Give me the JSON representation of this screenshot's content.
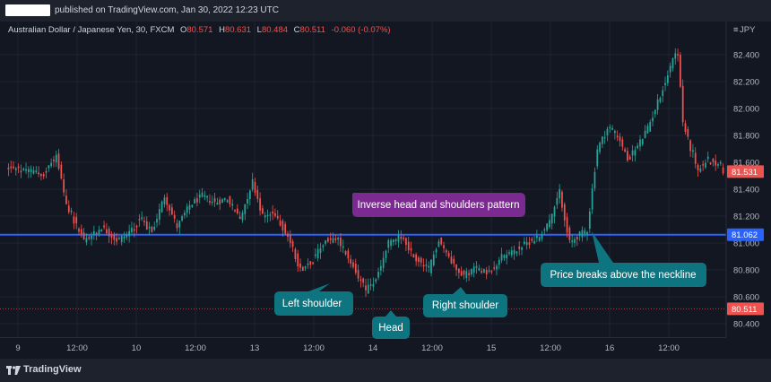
{
  "header": {
    "published_text": "published on TradingView.com, Jan 30, 2022 12:23 UTC"
  },
  "legend": {
    "symbol": "Australian Dollar / Japanese Yen, 30, FXCM",
    "open_label": "O",
    "open": "80.571",
    "high_label": "H",
    "high": "80.631",
    "low_label": "L",
    "low": "80.484",
    "close_label": "C",
    "close": "80.511",
    "change": "-0.060 (-0.07%)"
  },
  "currency": "JPY",
  "footer": {
    "brand": "TradingView"
  },
  "colors": {
    "up": "#26a69a",
    "down": "#ef5350",
    "neckline": "#2962ff",
    "price_badge": "#ef5350",
    "neckline_badge": "#2962ff",
    "callout_teal": "#0e7580",
    "callout_purple": "#7b2a91"
  },
  "chart_data": {
    "type": "candlestick",
    "y_axis": {
      "min": 80.3,
      "max": 82.6,
      "ticks": [
        "82.400",
        "82.200",
        "82.000",
        "81.800",
        "81.600",
        "81.400",
        "81.200",
        "81.000",
        "80.800",
        "80.600",
        "80.400"
      ]
    },
    "x_axis": {
      "ticks": [
        "9",
        "12:00",
        "10",
        "12:00",
        "13",
        "12:00",
        "14",
        "12:00",
        "15",
        "12:00",
        "16",
        "12:00"
      ]
    },
    "neckline": {
      "value": 81.062,
      "label": "81.062"
    },
    "last_price": {
      "value": 81.531,
      "label": "81.531"
    },
    "close_line": {
      "value": 80.511,
      "label": "80.511"
    },
    "anchors": [
      [
        0,
        81.56
      ],
      [
        14,
        81.52
      ],
      [
        19,
        81.65
      ],
      [
        23,
        81.28
      ],
      [
        30,
        81.02
      ],
      [
        37,
        81.12
      ],
      [
        43,
        81.02
      ],
      [
        47,
        81.06
      ],
      [
        52,
        81.18
      ],
      [
        57,
        81.08
      ],
      [
        62,
        81.35
      ],
      [
        67,
        81.12
      ],
      [
        72,
        81.28
      ],
      [
        77,
        81.35
      ],
      [
        82,
        81.3
      ],
      [
        87,
        81.33
      ],
      [
        92,
        81.18
      ],
      [
        97,
        81.46
      ],
      [
        101,
        81.2
      ],
      [
        106,
        81.22
      ],
      [
        111,
        81.05
      ],
      [
        116,
        80.8
      ],
      [
        121,
        80.88
      ],
      [
        126,
        81.02
      ],
      [
        131,
        81.02
      ],
      [
        136,
        80.86
      ],
      [
        142,
        80.65
      ],
      [
        146,
        80.72
      ],
      [
        151,
        81.0
      ],
      [
        156,
        81.05
      ],
      [
        161,
        80.9
      ],
      [
        167,
        80.8
      ],
      [
        171,
        81.03
      ],
      [
        176,
        80.86
      ],
      [
        181,
        80.76
      ],
      [
        186,
        80.82
      ],
      [
        191,
        80.78
      ],
      [
        196,
        80.9
      ],
      [
        201,
        80.94
      ],
      [
        206,
        81.0
      ],
      [
        211,
        81.05
      ],
      [
        216,
        81.2
      ],
      [
        219,
        81.38
      ],
      [
        223,
        81.0
      ],
      [
        226,
        81.05
      ],
      [
        230,
        81.1
      ],
      [
        234,
        81.7
      ],
      [
        238,
        81.85
      ],
      [
        242,
        81.8
      ],
      [
        246,
        81.62
      ],
      [
        250,
        81.72
      ],
      [
        254,
        81.85
      ],
      [
        258,
        82.05
      ],
      [
        262,
        82.25
      ],
      [
        264,
        82.38
      ],
      [
        266,
        82.42
      ],
      [
        268,
        81.9
      ],
      [
        271,
        81.7
      ],
      [
        274,
        81.55
      ],
      [
        278,
        81.62
      ],
      [
        281,
        81.6
      ],
      [
        284,
        81.54
      ]
    ],
    "annotations": [
      {
        "text": "Inverse head and shoulders pattern"
      },
      {
        "text": "Left shoulder"
      },
      {
        "text": "Head"
      },
      {
        "text": "Right shoulder"
      },
      {
        "text": "Price breaks above the neckline"
      }
    ]
  }
}
